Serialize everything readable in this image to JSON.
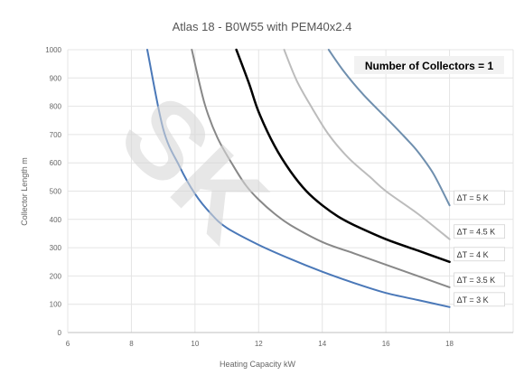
{
  "chart_data": {
    "type": "line",
    "title": "Atlas 18 - B0W55 with PEM40x2.4",
    "xlabel": "Heating Capacity  kW",
    "ylabel": "Collector Length  m",
    "xlim": [
      6,
      20
    ],
    "ylim": [
      0,
      1000
    ],
    "x_ticks": [
      "6",
      "8",
      "10",
      "12",
      "14",
      "16",
      "18"
    ],
    "y_ticks": [
      "0",
      "100",
      "200",
      "300",
      "400",
      "500",
      "600",
      "700",
      "800",
      "900",
      "1000"
    ],
    "grid": true,
    "annotation": "Number of Collectors = 1",
    "watermark": "SK",
    "series": [
      {
        "name": "ΔT = 3 K",
        "color": "#4a78b8",
        "points": [
          [
            8.5,
            1000
          ],
          [
            9.0,
            720
          ],
          [
            9.5,
            590
          ],
          [
            10.0,
            490
          ],
          [
            10.5,
            420
          ],
          [
            11.0,
            370
          ],
          [
            12.0,
            310
          ],
          [
            13.0,
            260
          ],
          [
            14.0,
            215
          ],
          [
            15.0,
            175
          ],
          [
            16.0,
            140
          ],
          [
            17.0,
            115
          ],
          [
            18.0,
            90
          ]
        ]
      },
      {
        "name": "ΔT = 3.5 K",
        "color": "#888888",
        "points": [
          [
            9.9,
            1000
          ],
          [
            10.3,
            810
          ],
          [
            10.7,
            690
          ],
          [
            11.2,
            590
          ],
          [
            11.6,
            520
          ],
          [
            12.0,
            470
          ],
          [
            12.5,
            420
          ],
          [
            13.0,
            380
          ],
          [
            14.0,
            320
          ],
          [
            15.0,
            280
          ],
          [
            16.0,
            240
          ],
          [
            17.0,
            200
          ],
          [
            18.0,
            160
          ]
        ]
      },
      {
        "name": "ΔT = 4 K",
        "color": "#000000",
        "points": [
          [
            11.3,
            1000
          ],
          [
            11.7,
            880
          ],
          [
            12.0,
            780
          ],
          [
            12.5,
            660
          ],
          [
            13.0,
            570
          ],
          [
            13.5,
            500
          ],
          [
            14.0,
            450
          ],
          [
            14.5,
            410
          ],
          [
            15.0,
            380
          ],
          [
            16.0,
            330
          ],
          [
            17.0,
            290
          ],
          [
            18.0,
            250
          ]
        ]
      },
      {
        "name": "ΔT = 4.5 K",
        "color": "#bcbcbc",
        "points": [
          [
            12.8,
            1000
          ],
          [
            13.2,
            890
          ],
          [
            13.7,
            790
          ],
          [
            14.2,
            700
          ],
          [
            14.8,
            620
          ],
          [
            15.5,
            550
          ],
          [
            16.0,
            500
          ],
          [
            17.0,
            420
          ],
          [
            18.0,
            330
          ]
        ]
      },
      {
        "name": "ΔT = 5 K",
        "color": "#6f8fae",
        "points": [
          [
            14.2,
            1000
          ],
          [
            14.7,
            920
          ],
          [
            15.3,
            840
          ],
          [
            16.0,
            760
          ],
          [
            16.6,
            690
          ],
          [
            17.0,
            640
          ],
          [
            17.5,
            560
          ],
          [
            18.0,
            450
          ]
        ]
      }
    ]
  }
}
